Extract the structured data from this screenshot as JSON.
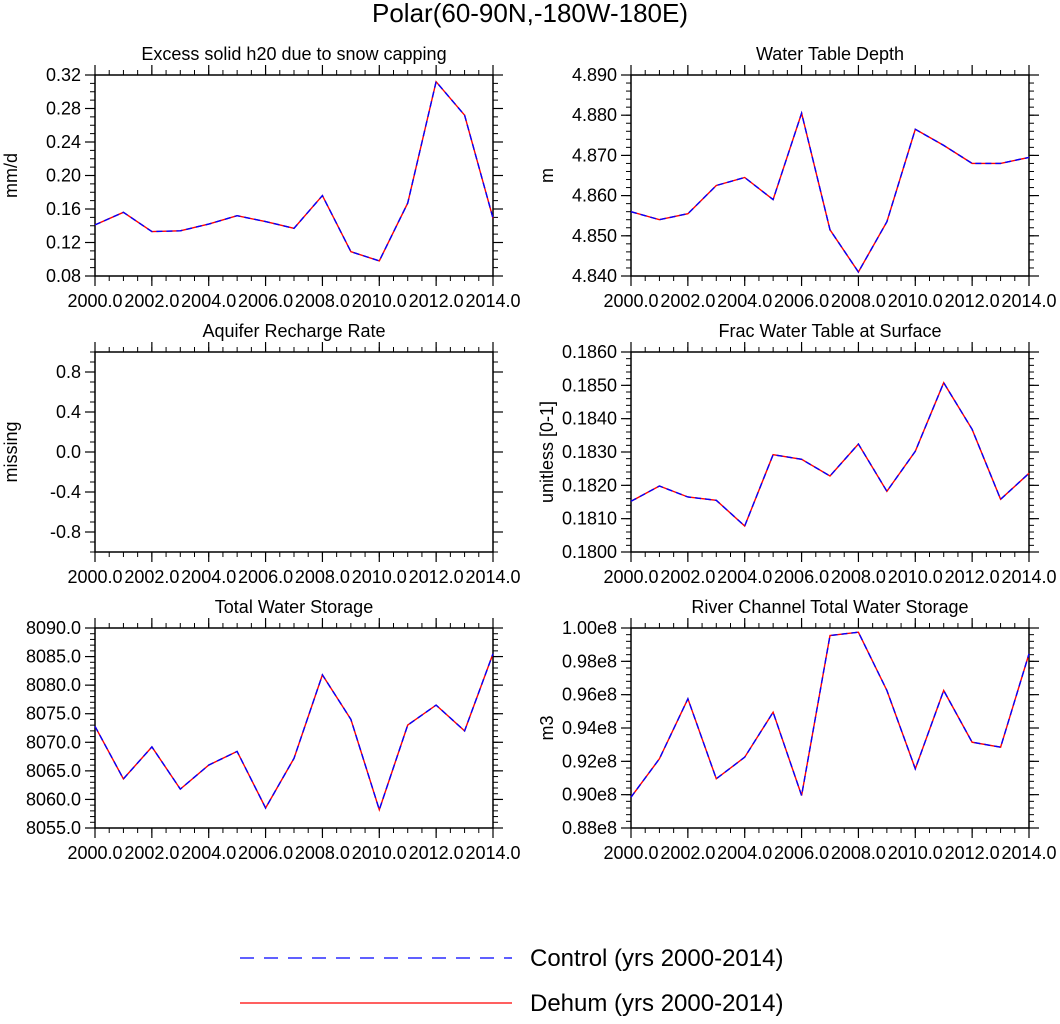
{
  "figure": {
    "title": "Polar(60-90N,-180W-180E)"
  },
  "legend": {
    "entries": [
      {
        "label": "Control (yrs 2000-2014)",
        "color": "#0000ff",
        "style": "dashed"
      },
      {
        "label": "Dehum (yrs 2000-2014)",
        "color": "#ff0000",
        "style": "solid"
      }
    ]
  },
  "colors": {
    "control": "#0000ff",
    "dehum": "#ff0000",
    "axis": "#000000"
  },
  "chart_data": [
    {
      "id": "excess-solid-h2o",
      "type": "line",
      "title": "Excess solid h20 due to snow capping",
      "ylabel": "mm/d",
      "xlabel": "",
      "xlim": [
        2000,
        2014
      ],
      "ylim": [
        0.08,
        0.32
      ],
      "xticks": [
        2000,
        2002,
        2004,
        2006,
        2008,
        2010,
        2012,
        2014
      ],
      "xtick_labels": [
        "2000.0",
        "2002.0",
        "2004.0",
        "2006.0",
        "2008.0",
        "2010.0",
        "2012.0",
        "2014.0"
      ],
      "yticks": [
        0.08,
        0.12,
        0.16,
        0.2,
        0.24,
        0.28,
        0.32
      ],
      "ytick_labels": [
        "0.08",
        "0.12",
        "0.16",
        "0.20",
        "0.24",
        "0.28",
        "0.32"
      ],
      "yminor": 0.01,
      "x": [
        2000,
        2001,
        2002,
        2003,
        2004,
        2005,
        2006,
        2007,
        2008,
        2009,
        2010,
        2011,
        2012,
        2013,
        2014
      ],
      "series": [
        {
          "name": "Dehum (yrs 2000-2014)",
          "values": [
            0.141,
            0.156,
            0.133,
            0.134,
            0.142,
            0.152,
            0.145,
            0.137,
            0.176,
            0.109,
            0.098,
            0.167,
            0.312,
            0.272,
            0.149
          ]
        },
        {
          "name": "Control (yrs 2000-2014)",
          "values": [
            0.141,
            0.156,
            0.133,
            0.134,
            0.142,
            0.152,
            0.145,
            0.137,
            0.176,
            0.109,
            0.098,
            0.167,
            0.312,
            0.272,
            0.149
          ]
        }
      ]
    },
    {
      "id": "water-table-depth",
      "type": "line",
      "title": "Water Table Depth",
      "ylabel": "m",
      "xlabel": "",
      "xlim": [
        2000,
        2014
      ],
      "ylim": [
        4.84,
        4.89
      ],
      "xticks": [
        2000,
        2002,
        2004,
        2006,
        2008,
        2010,
        2012,
        2014
      ],
      "xtick_labels": [
        "2000.0",
        "2002.0",
        "2004.0",
        "2006.0",
        "2008.0",
        "2010.0",
        "2012.0",
        "2014.0"
      ],
      "yticks": [
        4.84,
        4.85,
        4.86,
        4.87,
        4.88,
        4.89
      ],
      "ytick_labels": [
        "4.840",
        "4.850",
        "4.860",
        "4.870",
        "4.880",
        "4.890"
      ],
      "yminor": 0.002,
      "x": [
        2000,
        2001,
        2002,
        2003,
        2004,
        2005,
        2006,
        2007,
        2008,
        2009,
        2010,
        2011,
        2012,
        2013,
        2014
      ],
      "series": [
        {
          "name": "Dehum (yrs 2000-2014)",
          "values": [
            4.856,
            4.854,
            4.8555,
            4.8625,
            4.8645,
            4.859,
            4.8805,
            4.8515,
            4.841,
            4.8535,
            4.8765,
            4.8725,
            4.868,
            4.868,
            4.8695
          ]
        },
        {
          "name": "Control (yrs 2000-2014)",
          "values": [
            4.856,
            4.854,
            4.8555,
            4.8625,
            4.8645,
            4.859,
            4.8805,
            4.8515,
            4.841,
            4.8535,
            4.8765,
            4.8725,
            4.868,
            4.868,
            4.8695
          ]
        }
      ]
    },
    {
      "id": "aquifer-recharge-rate",
      "type": "line",
      "title": "Aquifer Recharge Rate",
      "ylabel": "missing",
      "xlabel": "",
      "xlim": [
        2000,
        2014
      ],
      "ylim": [
        -1.0,
        1.0
      ],
      "xticks": [
        2000,
        2002,
        2004,
        2006,
        2008,
        2010,
        2012,
        2014
      ],
      "xtick_labels": [
        "2000.0",
        "2002.0",
        "2004.0",
        "2006.0",
        "2008.0",
        "2010.0",
        "2012.0",
        "2014.0"
      ],
      "yticks": [
        -0.8,
        -0.4,
        0.0,
        0.4,
        0.8
      ],
      "ytick_labels": [
        "-0.8",
        "-0.4",
        "0.0",
        "0.4",
        "0.8"
      ],
      "yminor": 0.1,
      "x": [],
      "series": []
    },
    {
      "id": "frac-water-table",
      "type": "line",
      "title": "Frac Water Table at Surface",
      "ylabel": "unitless [0-1]",
      "xlabel": "",
      "xlim": [
        2000,
        2014
      ],
      "ylim": [
        0.18,
        0.186
      ],
      "xticks": [
        2000,
        2002,
        2004,
        2006,
        2008,
        2010,
        2012,
        2014
      ],
      "xtick_labels": [
        "2000.0",
        "2002.0",
        "2004.0",
        "2006.0",
        "2008.0",
        "2010.0",
        "2012.0",
        "2014.0"
      ],
      "yticks": [
        0.18,
        0.181,
        0.182,
        0.183,
        0.184,
        0.185,
        0.186
      ],
      "ytick_labels": [
        "0.1800",
        "0.1810",
        "0.1820",
        "0.1830",
        "0.1840",
        "0.1850",
        "0.1860"
      ],
      "yminor": 0.0002,
      "x": [
        2000,
        2001,
        2002,
        2003,
        2004,
        2005,
        2006,
        2007,
        2008,
        2009,
        2010,
        2011,
        2012,
        2013,
        2014
      ],
      "series": [
        {
          "name": "Dehum (yrs 2000-2014)",
          "values": [
            0.18152,
            0.18198,
            0.18165,
            0.18155,
            0.18078,
            0.18292,
            0.18278,
            0.18228,
            0.18324,
            0.18182,
            0.18302,
            0.18508,
            0.18368,
            0.18158,
            0.18236
          ]
        },
        {
          "name": "Control (yrs 2000-2014)",
          "values": [
            0.18152,
            0.18198,
            0.18165,
            0.18155,
            0.18078,
            0.18292,
            0.18278,
            0.18228,
            0.18324,
            0.18182,
            0.18302,
            0.18508,
            0.18368,
            0.18158,
            0.18236
          ]
        }
      ]
    },
    {
      "id": "total-water-storage",
      "type": "line",
      "title": "Total Water Storage",
      "ylabel": "",
      "xlabel": "",
      "xlim": [
        2000,
        2014
      ],
      "ylim": [
        8055,
        8090
      ],
      "xticks": [
        2000,
        2002,
        2004,
        2006,
        2008,
        2010,
        2012,
        2014
      ],
      "xtick_labels": [
        "2000.0",
        "2002.0",
        "2004.0",
        "2006.0",
        "2008.0",
        "2010.0",
        "2012.0",
        "2014.0"
      ],
      "yticks": [
        8055,
        8060,
        8065,
        8070,
        8075,
        8080,
        8085,
        8090
      ],
      "ytick_labels": [
        "8055.0",
        "8060.0",
        "8065.0",
        "8070.0",
        "8075.0",
        "8080.0",
        "8085.0",
        "8090.0"
      ],
      "yminor": 1,
      "x": [
        2000,
        2001,
        2002,
        2003,
        2004,
        2005,
        2006,
        2007,
        2008,
        2009,
        2010,
        2011,
        2012,
        2013,
        2014
      ],
      "series": [
        {
          "name": "Dehum (yrs 2000-2014)",
          "values": [
            8072.8,
            8063.6,
            8069.2,
            8061.8,
            8066.0,
            8068.4,
            8058.5,
            8067.2,
            8081.8,
            8074.0,
            8058.2,
            8073.0,
            8076.5,
            8072.0,
            8085.5
          ]
        },
        {
          "name": "Control (yrs 2000-2014)",
          "values": [
            8072.8,
            8063.6,
            8069.2,
            8061.8,
            8066.0,
            8068.4,
            8058.5,
            8067.2,
            8081.8,
            8074.0,
            8058.2,
            8073.0,
            8076.5,
            8072.0,
            8085.5
          ]
        }
      ]
    },
    {
      "id": "river-channel-storage",
      "type": "line",
      "title": "River Channel Total Water Storage",
      "ylabel": "m3",
      "xlabel": "",
      "xlim": [
        2000,
        2014
      ],
      "ylim": [
        0.88,
        1.0
      ],
      "xticks": [
        2000,
        2002,
        2004,
        2006,
        2008,
        2010,
        2012,
        2014
      ],
      "xtick_labels": [
        "2000.0",
        "2002.0",
        "2004.0",
        "2006.0",
        "2008.0",
        "2010.0",
        "2012.0",
        "2014.0"
      ],
      "yticks": [
        0.88,
        0.9,
        0.92,
        0.94,
        0.96,
        0.98,
        1.0
      ],
      "ytick_labels": [
        "0.88e8",
        "0.90e8",
        "0.92e8",
        "0.94e8",
        "0.96e8",
        "0.98e8",
        "1.00e8"
      ],
      "yminor": 0.004,
      "x": [
        2000,
        2001,
        2002,
        2003,
        2004,
        2005,
        2006,
        2007,
        2008,
        2009,
        2010,
        2011,
        2012,
        2013,
        2014
      ],
      "series": [
        {
          "name": "Dehum (yrs 2000-2014)",
          "values": [
            0.8985,
            0.9215,
            0.9575,
            0.9095,
            0.9225,
            0.9495,
            0.8995,
            0.9955,
            0.9975,
            0.9625,
            0.9155,
            0.9625,
            0.9315,
            0.9285,
            0.9845
          ]
        },
        {
          "name": "Control (yrs 2000-2014)",
          "values": [
            0.8985,
            0.9215,
            0.9575,
            0.9095,
            0.9225,
            0.9495,
            0.8995,
            0.9955,
            0.9975,
            0.9625,
            0.9155,
            0.9625,
            0.9315,
            0.9285,
            0.9845
          ]
        }
      ]
    }
  ]
}
